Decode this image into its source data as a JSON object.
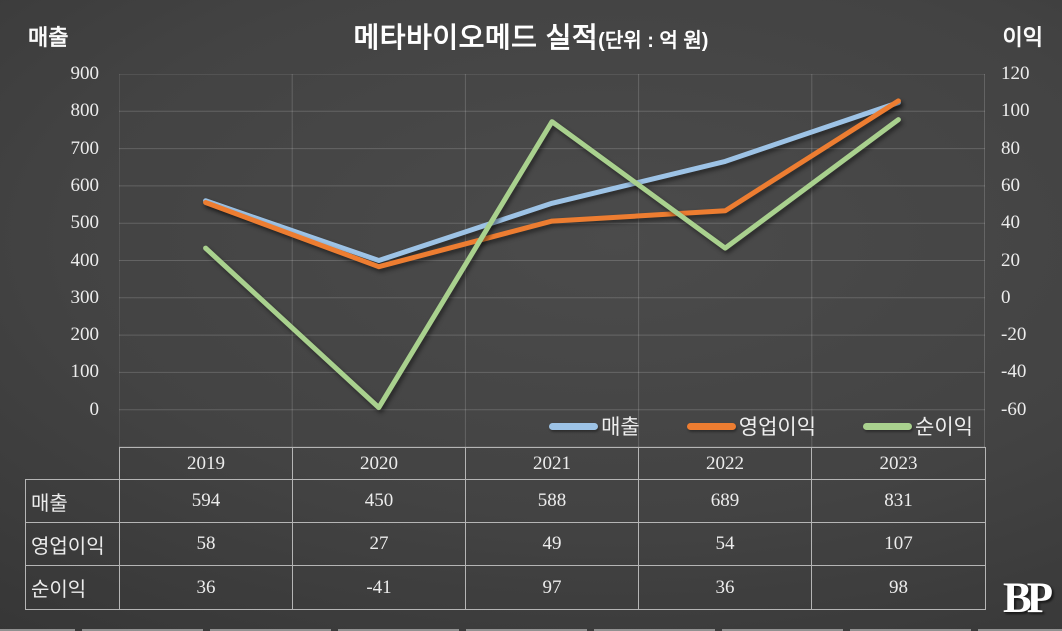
{
  "title": {
    "main": "메타바이오메드 실적",
    "unit": "(단위 : 억 원)"
  },
  "left_axis": {
    "title": "매출",
    "ticks": [
      "900",
      "800",
      "700",
      "600",
      "500",
      "400",
      "300",
      "200",
      "100",
      "0"
    ],
    "min": 0,
    "max": 900
  },
  "right_axis": {
    "title": "이익",
    "ticks": [
      "120",
      "100",
      "80",
      "60",
      "40",
      "20",
      "0",
      "-20",
      "-40",
      "-60"
    ],
    "min": -60,
    "max": 120
  },
  "chart_data": {
    "type": "line",
    "categories": [
      "2019",
      "2020",
      "2021",
      "2022",
      "2023"
    ],
    "series": [
      {
        "id": "revenue",
        "name": "매출",
        "axis": "left",
        "color": "#9DC3E6",
        "values": [
          594,
          450,
          588,
          689,
          831
        ]
      },
      {
        "id": "operating-profit",
        "name": "영업이익",
        "axis": "right",
        "color": "#ED7D31",
        "values": [
          58,
          27,
          49,
          54,
          107
        ]
      },
      {
        "id": "net-profit",
        "name": "순이익",
        "axis": "right",
        "color": "#A9D18E",
        "values": [
          36,
          -41,
          97,
          36,
          98
        ]
      }
    ],
    "title": "메타바이오메드 실적(단위 : 억 원)",
    "left_ylim": [
      0,
      900
    ],
    "right_ylim": [
      -60,
      120
    ],
    "grid": true,
    "legend_position": "inside-bottom-right"
  },
  "table": {
    "years": [
      "2019",
      "2020",
      "2021",
      "2022",
      "2023"
    ],
    "rows": [
      {
        "label": "매출",
        "values": [
          "594",
          "450",
          "588",
          "689",
          "831"
        ]
      },
      {
        "label": "영업이익",
        "values": [
          "58",
          "27",
          "49",
          "54",
          "107"
        ]
      },
      {
        "label": "순이익",
        "values": [
          "36",
          "-41",
          "97",
          "36",
          "98"
        ]
      }
    ]
  },
  "logo": {
    "text": "BP"
  },
  "colors": {
    "background_center": "#4b4b4b",
    "background_edge": "#282828",
    "gridline": "#5f5f5f",
    "table_border": "#b5b5b5",
    "text": "#f0f0f0"
  }
}
